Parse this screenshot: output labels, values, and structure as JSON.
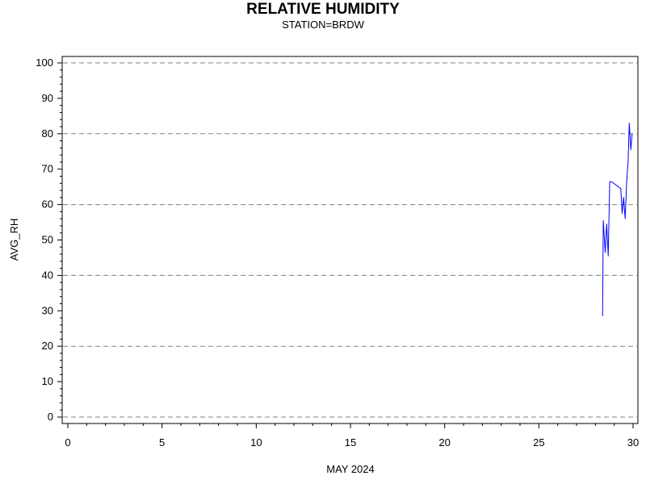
{
  "chart_data": {
    "type": "line",
    "title": "RELATIVE HUMIDITY",
    "subtitle": "STATION=BRDW",
    "xlabel": "MAY 2024",
    "ylabel": "AVG_RH",
    "xlim": [
      0,
      30
    ],
    "ylim": [
      0,
      100
    ],
    "x_ticks": [
      0,
      5,
      10,
      15,
      20,
      25,
      30
    ],
    "y_ticks": [
      0,
      10,
      20,
      30,
      40,
      50,
      60,
      70,
      80,
      90,
      100
    ],
    "grid_y": [
      0,
      20,
      40,
      60,
      80,
      100
    ],
    "grid": "dashed horizontal",
    "line_color": "#0000ff",
    "series": [
      {
        "x": [
          28.38,
          28.42,
          28.52,
          28.6,
          28.68,
          28.76,
          28.85,
          29.35,
          29.42,
          29.5,
          29.58,
          29.66,
          29.74,
          29.8,
          29.88,
          29.95
        ],
        "y": [
          28.5,
          55.5,
          46.5,
          54.5,
          45.5,
          66.5,
          66.5,
          64.5,
          57.5,
          62,
          56,
          66.5,
          72.5,
          83,
          75.5,
          80
        ]
      }
    ]
  }
}
